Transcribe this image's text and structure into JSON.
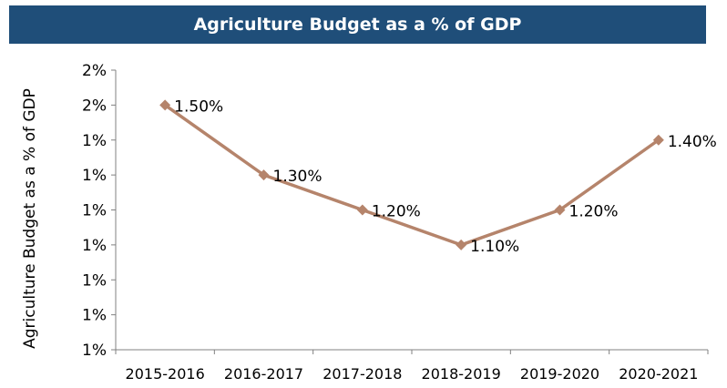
{
  "colors": {
    "title_bg": "#1f4e79",
    "series": "#b5846b"
  },
  "chart_data": {
    "type": "line",
    "title": "Agriculture Budget as a % of GDP",
    "ylabel": "Agriculture Budget as a % of GDP",
    "xlabel": "",
    "categories": [
      "2015-2016",
      "2016-2017",
      "2017-2018",
      "2018-2019",
      "2019-2020",
      "2020-2021"
    ],
    "series": [
      {
        "values": [
          1.5,
          1.3,
          1.2,
          1.1,
          1.2,
          1.4
        ],
        "labels": [
          "1.50%",
          "1.30%",
          "1.20%",
          "1.10%",
          "1.20%",
          "1.40%"
        ]
      }
    ],
    "ylim": [
      0.8,
      1.6
    ],
    "yticks": [
      {
        "value": 1.6,
        "label": "2%"
      },
      {
        "value": 1.5,
        "label": "2%"
      },
      {
        "value": 1.4,
        "label": "1%"
      },
      {
        "value": 1.3,
        "label": "1%"
      },
      {
        "value": 1.2,
        "label": "1%"
      },
      {
        "value": 1.1,
        "label": "1%"
      },
      {
        "value": 1.0,
        "label": "1%"
      },
      {
        "value": 0.9,
        "label": "1%"
      },
      {
        "value": 0.8,
        "label": "1%"
      }
    ],
    "grid": false,
    "legend": "none",
    "marker": "diamond"
  }
}
